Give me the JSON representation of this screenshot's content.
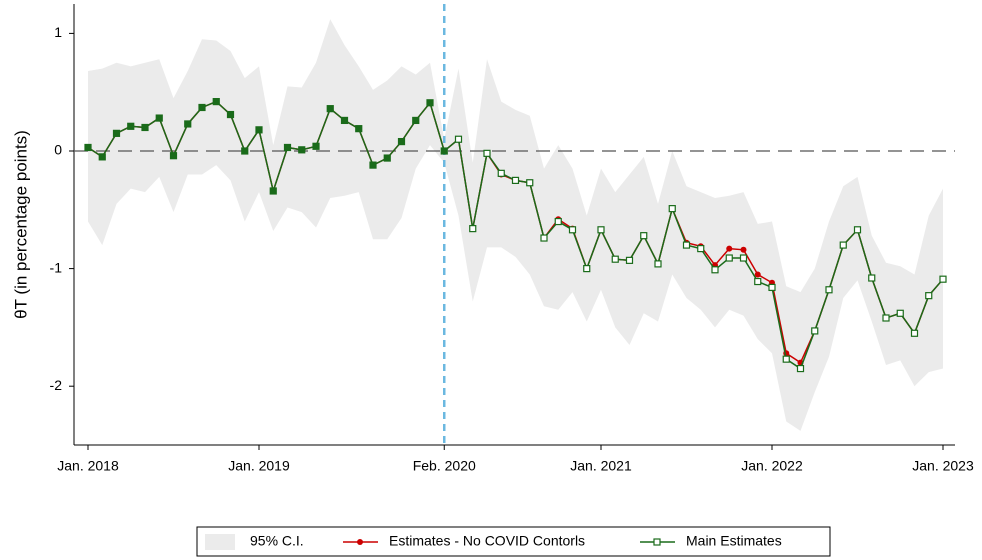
{
  "chart_data": {
    "type": "line",
    "y_label": "θT (in percentage points)",
    "categories": [
      "Jan. 2018",
      null,
      null,
      null,
      null,
      null,
      null,
      null,
      null,
      null,
      null,
      null,
      "Jan. 2019",
      null,
      null,
      null,
      null,
      null,
      null,
      null,
      null,
      null,
      null,
      null,
      null,
      "Feb. 2020",
      null,
      null,
      null,
      null,
      null,
      null,
      null,
      null,
      null,
      null,
      "Jan. 2021",
      null,
      null,
      null,
      null,
      null,
      null,
      null,
      null,
      null,
      null,
      null,
      "Jan. 2022",
      null,
      null,
      null,
      null,
      null,
      null,
      null,
      null,
      null,
      null,
      null,
      "Jan. 2023"
    ],
    "event": "Feb. 2020",
    "hline": 0,
    "ylim": [
      -2.5,
      1.25
    ],
    "yticks": [
      -2,
      -1,
      0,
      1
    ],
    "series": [
      {
        "name": "95% C.I.",
        "color": "#ebebeb",
        "upper": [
          0.68,
          0.7,
          0.75,
          0.72,
          0.75,
          0.78,
          0.45,
          0.68,
          0.95,
          0.94,
          0.85,
          0.62,
          0.72,
          0.05,
          0.55,
          0.54,
          0.75,
          1.12,
          0.9,
          0.72,
          0.52,
          0.6,
          0.72,
          0.65,
          0.75,
          0.1,
          0.7,
          -0.1,
          0.78,
          0.42,
          0.35,
          0.3,
          -0.15,
          0.05,
          -0.15,
          -0.55,
          -0.15,
          -0.35,
          -0.2,
          -0.05,
          -0.45,
          0.0,
          -0.3,
          -0.35,
          -0.4,
          -0.38,
          -0.35,
          -0.62,
          -0.6,
          -1.15,
          -1.2,
          -1.0,
          -0.6,
          -0.3,
          -0.22,
          -0.72,
          -0.95,
          -0.98,
          -1.05,
          -0.55,
          -0.32
        ],
        "lower": [
          -0.6,
          -0.8,
          -0.45,
          -0.32,
          -0.35,
          -0.22,
          -0.52,
          -0.2,
          -0.2,
          -0.12,
          -0.25,
          -0.6,
          -0.35,
          -0.68,
          -0.48,
          -0.52,
          -0.65,
          -0.4,
          -0.38,
          -0.35,
          -0.75,
          -0.75,
          -0.57,
          -0.15,
          0.05,
          -0.1,
          -0.55,
          -1.28,
          -0.82,
          -0.82,
          -0.9,
          -1.05,
          -1.32,
          -1.35,
          -1.2,
          -1.45,
          -1.18,
          -1.5,
          -1.65,
          -1.38,
          -1.45,
          -1.05,
          -1.25,
          -1.35,
          -1.5,
          -1.35,
          -1.4,
          -1.6,
          -1.72,
          -2.3,
          -2.38,
          -2.05,
          -1.75,
          -1.25,
          -1.1,
          -1.45,
          -1.82,
          -1.78,
          -2.0,
          -1.88,
          -1.85
        ]
      },
      {
        "name": "Estimates - No COVID Contorls",
        "color": "#cc0000",
        "marker": "circle",
        "values": [
          0.03,
          -0.05,
          0.15,
          0.21,
          0.2,
          0.28,
          -0.04,
          0.23,
          0.37,
          0.42,
          0.31,
          0.0,
          0.18,
          -0.34,
          0.03,
          0.01,
          0.04,
          0.36,
          0.26,
          0.19,
          -0.12,
          -0.06,
          0.08,
          0.26,
          0.41,
          0.0,
          0.1,
          -0.66,
          -0.02,
          -0.2,
          -0.25,
          -0.27,
          -0.74,
          -0.58,
          -0.66,
          -1.0,
          -0.67,
          -0.92,
          -0.93,
          -0.72,
          -0.96,
          -0.49,
          -0.78,
          -0.81,
          -0.97,
          -0.83,
          -0.84,
          -1.05,
          -1.12,
          -1.72,
          -1.8,
          -1.53,
          -1.18,
          -0.8,
          -0.67,
          -1.08,
          -1.42,
          -1.38,
          -1.55,
          -1.23,
          -1.09
        ]
      },
      {
        "name": "Main Estimates",
        "color": "#1a6b1a",
        "marker": "square",
        "values": [
          0.03,
          -0.05,
          0.15,
          0.21,
          0.2,
          0.28,
          -0.04,
          0.23,
          0.37,
          0.42,
          0.31,
          0.0,
          0.18,
          -0.34,
          0.03,
          0.01,
          0.04,
          0.36,
          0.26,
          0.19,
          -0.12,
          -0.06,
          0.08,
          0.26,
          0.41,
          0.0,
          0.1,
          -0.66,
          -0.02,
          -0.19,
          -0.25,
          -0.27,
          -0.74,
          -0.6,
          -0.67,
          -1.0,
          -0.67,
          -0.92,
          -0.93,
          -0.72,
          -0.96,
          -0.49,
          -0.8,
          -0.83,
          -1.01,
          -0.91,
          -0.91,
          -1.11,
          -1.16,
          -1.77,
          -1.85,
          -1.53,
          -1.18,
          -0.8,
          -0.67,
          -1.08,
          -1.42,
          -1.38,
          -1.55,
          -1.23,
          -1.09
        ]
      }
    ]
  }
}
